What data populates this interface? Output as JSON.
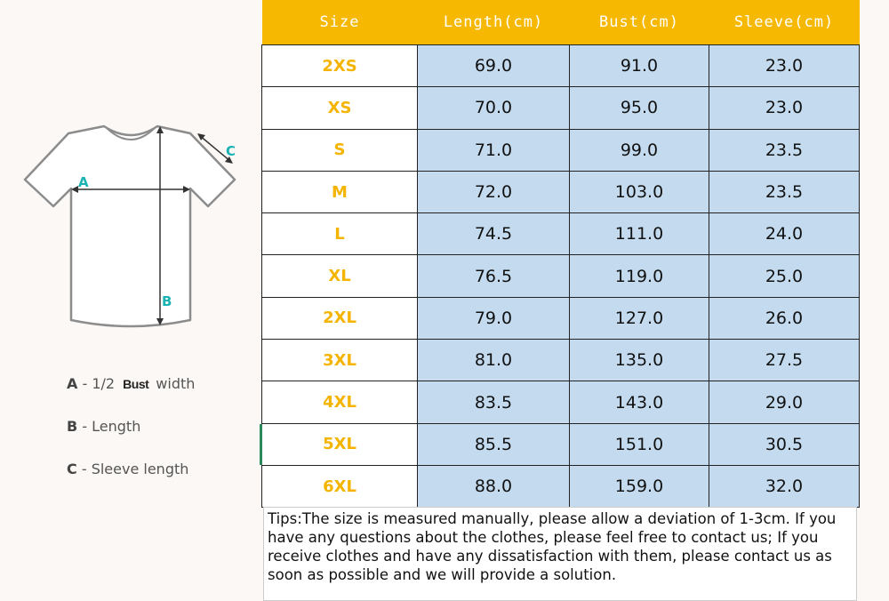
{
  "diagram": {
    "labels": {
      "a": "A",
      "b": "B",
      "c": "C"
    },
    "colors": {
      "outline": "#8c8c8c",
      "arrow": "#333333",
      "label": "#19b3b3"
    }
  },
  "legend": [
    {
      "key": "A",
      "sep": " - 1/2 ",
      "bold_word": "Bust",
      "rest": "width"
    },
    {
      "key": "B",
      "sep": " -  ",
      "bold_word": "",
      "rest": "Length"
    },
    {
      "key": "C",
      "sep": " - ",
      "bold_word": "",
      "rest": "Sleeve length"
    }
  ],
  "table": {
    "headers": [
      "Size",
      "Length(cm)",
      "Bust(cm)",
      "Sleeve(cm)"
    ],
    "rows": [
      [
        "2XS",
        "69.0",
        "91.0",
        "23.0"
      ],
      [
        "XS",
        "70.0",
        "95.0",
        "23.0"
      ],
      [
        "S",
        "71.0",
        "99.0",
        "23.5"
      ],
      [
        "M",
        "72.0",
        "103.0",
        "23.5"
      ],
      [
        "L",
        "74.5",
        "111.0",
        "24.0"
      ],
      [
        "XL",
        "76.5",
        "119.0",
        "25.0"
      ],
      [
        "2XL",
        "79.0",
        "127.0",
        "26.0"
      ],
      [
        "3XL",
        "81.0",
        "135.0",
        "27.5"
      ],
      [
        "4XL",
        "83.5",
        "143.0",
        "29.0"
      ],
      [
        "5XL",
        "85.5",
        "151.0",
        "30.5"
      ],
      [
        "6XL",
        "88.0",
        "159.0",
        "32.0"
      ]
    ],
    "colors": {
      "header_bg": "#f6b800",
      "size_text": "#f4b400",
      "value_bg": "#c4dbef"
    }
  },
  "tips": "Tips:The size is measured manually, please allow a deviation of 1-3cm. If you have any questions about the clothes, please feel free to contact us; If you receive clothes and have any dissatisfaction with them, please contact us as soon as possible and we will provide a solution."
}
